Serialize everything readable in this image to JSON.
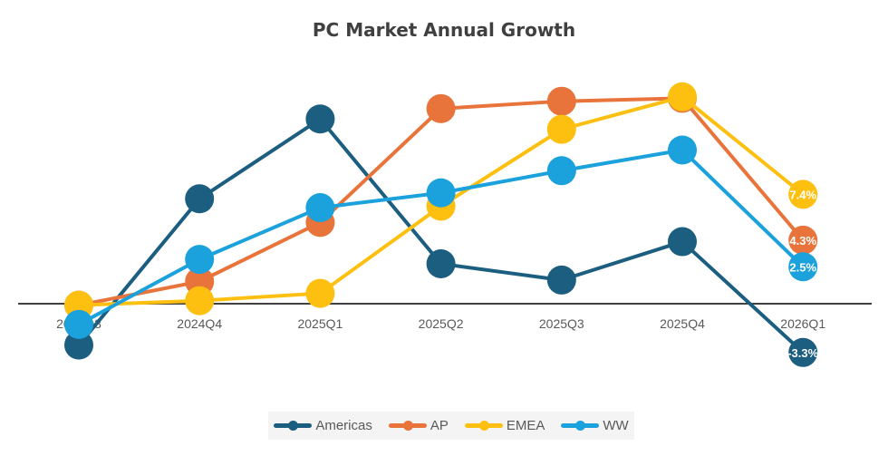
{
  "chart_data": {
    "type": "line",
    "title": "PC Market Annual Growth",
    "categories": [
      "2024Q3",
      "2024Q4",
      "2025Q1",
      "2025Q2",
      "2025Q3",
      "2025Q4",
      "2026Q1"
    ],
    "series": [
      {
        "name": "Americas",
        "color": "#1b5e80",
        "values": [
          -2.8,
          7.1,
          12.5,
          2.7,
          1.6,
          4.2,
          -3.3
        ],
        "last_label": "-3.3%"
      },
      {
        "name": "AP",
        "color": "#e8743b",
        "values": [
          -0.1,
          1.5,
          5.5,
          13.2,
          13.7,
          13.9,
          4.3
        ],
        "last_label": "4.3%"
      },
      {
        "name": "EMEA",
        "color": "#fdc010",
        "values": [
          -0.1,
          0.2,
          0.7,
          6.6,
          11.8,
          14.0,
          7.4
        ],
        "last_label": "7.4%"
      },
      {
        "name": "WW",
        "color": "#1ba1dc",
        "values": [
          -1.4,
          3.0,
          6.5,
          7.5,
          9.0,
          10.4,
          2.5
        ],
        "last_label": "2.5%"
      }
    ],
    "y_axis_visible": false,
    "grid": false,
    "legend": "bottom"
  }
}
